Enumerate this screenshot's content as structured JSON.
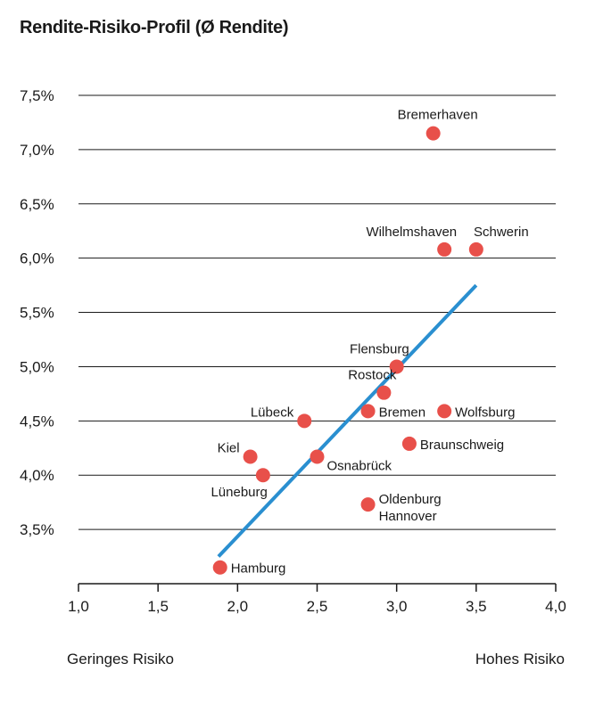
{
  "chart_data": {
    "type": "scatter",
    "title": "Rendite-Risiko-Profil (Ø Rendite)",
    "xlabel_left": "Geringes Risiko",
    "xlabel_right": "Hohes Risiko",
    "xlim": [
      1.0,
      4.0
    ],
    "ylim": [
      3.0,
      7.5
    ],
    "x_ticks": [
      "1,0",
      "1,5",
      "2,0",
      "2,5",
      "3,0",
      "3,5",
      "4,0"
    ],
    "x_tick_values": [
      1.0,
      1.5,
      2.0,
      2.5,
      3.0,
      3.5,
      4.0
    ],
    "y_ticks": [
      "3,5%",
      "4,0%",
      "4,5%",
      "5,0%",
      "5,5%",
      "6,0%",
      "6,5%",
      "7,0%",
      "7,5%"
    ],
    "y_tick_values": [
      3.5,
      4.0,
      4.5,
      5.0,
      5.5,
      6.0,
      6.5,
      7.0,
      7.5
    ],
    "grid": "horizontal",
    "point_color": "#e8504a",
    "trend_color": "#2a8fd0",
    "trendline": {
      "x": [
        1.88,
        3.5
      ],
      "y": [
        3.25,
        5.75
      ]
    },
    "points": [
      {
        "name": "Bremerhaven",
        "x": 3.23,
        "y": 7.15,
        "anchor": "above"
      },
      {
        "name": "Wilhelmshaven",
        "x": 3.3,
        "y": 6.08,
        "anchor": "above-left"
      },
      {
        "name": "Schwerin",
        "x": 3.5,
        "y": 6.08,
        "anchor": "above-right"
      },
      {
        "name": "Flensburg",
        "x": 3.0,
        "y": 5.0,
        "anchor": "above-left"
      },
      {
        "name": "Rostock",
        "x": 2.92,
        "y": 4.76,
        "anchor": "above-left"
      },
      {
        "name": "Lübeck",
        "x": 2.42,
        "y": 4.5,
        "anchor": "left-up"
      },
      {
        "name": "Bremen",
        "x": 2.82,
        "y": 4.59,
        "anchor": "right"
      },
      {
        "name": "Wolfsburg",
        "x": 3.3,
        "y": 4.59,
        "anchor": "right"
      },
      {
        "name": "Braunschweig",
        "x": 3.08,
        "y": 4.29,
        "anchor": "right"
      },
      {
        "name": "Kiel",
        "x": 2.08,
        "y": 4.17,
        "anchor": "left-up"
      },
      {
        "name": "Osnabrück",
        "x": 2.5,
        "y": 4.17,
        "anchor": "right-down"
      },
      {
        "name": "Lüneburg",
        "x": 2.16,
        "y": 4.0,
        "anchor": "below-left"
      },
      {
        "name": "Oldenburg\nHannover",
        "x": 2.82,
        "y": 3.73,
        "anchor": "right-two"
      },
      {
        "name": "Hamburg",
        "x": 1.89,
        "y": 3.15,
        "anchor": "right"
      }
    ]
  }
}
